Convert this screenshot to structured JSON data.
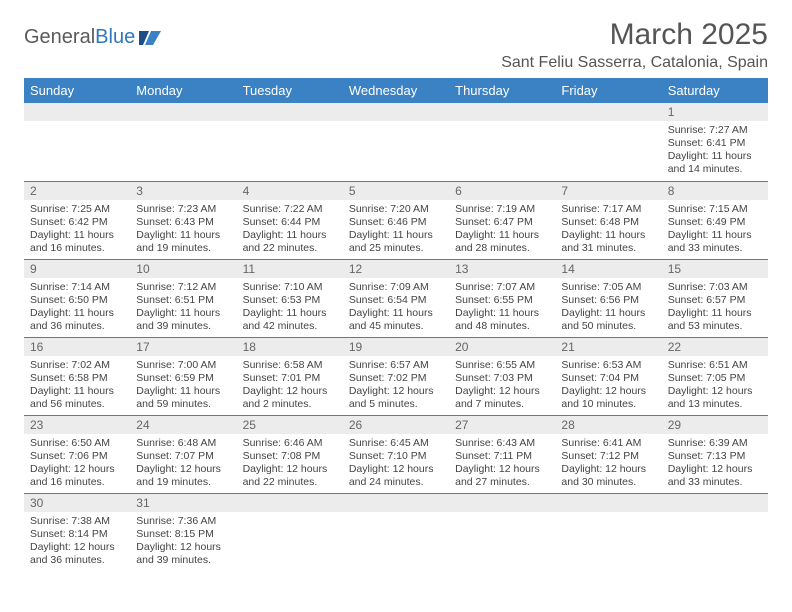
{
  "logo": {
    "text_a": "General",
    "text_b": "Blue"
  },
  "title": "March 2025",
  "location": "Sant Feliu Sasserra, Catalonia, Spain",
  "colors": {
    "header_bg": "#3a82c4",
    "header_fg": "#ffffff",
    "daynum_bg": "#ececec",
    "border": "#3a82c4",
    "logo_gray": "#5a5a5a",
    "logo_blue": "#2f78bd"
  },
  "weekdays": [
    "Sunday",
    "Monday",
    "Tuesday",
    "Wednesday",
    "Thursday",
    "Friday",
    "Saturday"
  ],
  "weeks": [
    [
      {
        "n": "",
        "lines": []
      },
      {
        "n": "",
        "lines": []
      },
      {
        "n": "",
        "lines": []
      },
      {
        "n": "",
        "lines": []
      },
      {
        "n": "",
        "lines": []
      },
      {
        "n": "",
        "lines": []
      },
      {
        "n": "1",
        "lines": [
          "Sunrise: 7:27 AM",
          "Sunset: 6:41 PM",
          "Daylight: 11 hours",
          "and 14 minutes."
        ]
      }
    ],
    [
      {
        "n": "2",
        "lines": [
          "Sunrise: 7:25 AM",
          "Sunset: 6:42 PM",
          "Daylight: 11 hours",
          "and 16 minutes."
        ]
      },
      {
        "n": "3",
        "lines": [
          "Sunrise: 7:23 AM",
          "Sunset: 6:43 PM",
          "Daylight: 11 hours",
          "and 19 minutes."
        ]
      },
      {
        "n": "4",
        "lines": [
          "Sunrise: 7:22 AM",
          "Sunset: 6:44 PM",
          "Daylight: 11 hours",
          "and 22 minutes."
        ]
      },
      {
        "n": "5",
        "lines": [
          "Sunrise: 7:20 AM",
          "Sunset: 6:46 PM",
          "Daylight: 11 hours",
          "and 25 minutes."
        ]
      },
      {
        "n": "6",
        "lines": [
          "Sunrise: 7:19 AM",
          "Sunset: 6:47 PM",
          "Daylight: 11 hours",
          "and 28 minutes."
        ]
      },
      {
        "n": "7",
        "lines": [
          "Sunrise: 7:17 AM",
          "Sunset: 6:48 PM",
          "Daylight: 11 hours",
          "and 31 minutes."
        ]
      },
      {
        "n": "8",
        "lines": [
          "Sunrise: 7:15 AM",
          "Sunset: 6:49 PM",
          "Daylight: 11 hours",
          "and 33 minutes."
        ]
      }
    ],
    [
      {
        "n": "9",
        "lines": [
          "Sunrise: 7:14 AM",
          "Sunset: 6:50 PM",
          "Daylight: 11 hours",
          "and 36 minutes."
        ]
      },
      {
        "n": "10",
        "lines": [
          "Sunrise: 7:12 AM",
          "Sunset: 6:51 PM",
          "Daylight: 11 hours",
          "and 39 minutes."
        ]
      },
      {
        "n": "11",
        "lines": [
          "Sunrise: 7:10 AM",
          "Sunset: 6:53 PM",
          "Daylight: 11 hours",
          "and 42 minutes."
        ]
      },
      {
        "n": "12",
        "lines": [
          "Sunrise: 7:09 AM",
          "Sunset: 6:54 PM",
          "Daylight: 11 hours",
          "and 45 minutes."
        ]
      },
      {
        "n": "13",
        "lines": [
          "Sunrise: 7:07 AM",
          "Sunset: 6:55 PM",
          "Daylight: 11 hours",
          "and 48 minutes."
        ]
      },
      {
        "n": "14",
        "lines": [
          "Sunrise: 7:05 AM",
          "Sunset: 6:56 PM",
          "Daylight: 11 hours",
          "and 50 minutes."
        ]
      },
      {
        "n": "15",
        "lines": [
          "Sunrise: 7:03 AM",
          "Sunset: 6:57 PM",
          "Daylight: 11 hours",
          "and 53 minutes."
        ]
      }
    ],
    [
      {
        "n": "16",
        "lines": [
          "Sunrise: 7:02 AM",
          "Sunset: 6:58 PM",
          "Daylight: 11 hours",
          "and 56 minutes."
        ]
      },
      {
        "n": "17",
        "lines": [
          "Sunrise: 7:00 AM",
          "Sunset: 6:59 PM",
          "Daylight: 11 hours",
          "and 59 minutes."
        ]
      },
      {
        "n": "18",
        "lines": [
          "Sunrise: 6:58 AM",
          "Sunset: 7:01 PM",
          "Daylight: 12 hours",
          "and 2 minutes."
        ]
      },
      {
        "n": "19",
        "lines": [
          "Sunrise: 6:57 AM",
          "Sunset: 7:02 PM",
          "Daylight: 12 hours",
          "and 5 minutes."
        ]
      },
      {
        "n": "20",
        "lines": [
          "Sunrise: 6:55 AM",
          "Sunset: 7:03 PM",
          "Daylight: 12 hours",
          "and 7 minutes."
        ]
      },
      {
        "n": "21",
        "lines": [
          "Sunrise: 6:53 AM",
          "Sunset: 7:04 PM",
          "Daylight: 12 hours",
          "and 10 minutes."
        ]
      },
      {
        "n": "22",
        "lines": [
          "Sunrise: 6:51 AM",
          "Sunset: 7:05 PM",
          "Daylight: 12 hours",
          "and 13 minutes."
        ]
      }
    ],
    [
      {
        "n": "23",
        "lines": [
          "Sunrise: 6:50 AM",
          "Sunset: 7:06 PM",
          "Daylight: 12 hours",
          "and 16 minutes."
        ]
      },
      {
        "n": "24",
        "lines": [
          "Sunrise: 6:48 AM",
          "Sunset: 7:07 PM",
          "Daylight: 12 hours",
          "and 19 minutes."
        ]
      },
      {
        "n": "25",
        "lines": [
          "Sunrise: 6:46 AM",
          "Sunset: 7:08 PM",
          "Daylight: 12 hours",
          "and 22 minutes."
        ]
      },
      {
        "n": "26",
        "lines": [
          "Sunrise: 6:45 AM",
          "Sunset: 7:10 PM",
          "Daylight: 12 hours",
          "and 24 minutes."
        ]
      },
      {
        "n": "27",
        "lines": [
          "Sunrise: 6:43 AM",
          "Sunset: 7:11 PM",
          "Daylight: 12 hours",
          "and 27 minutes."
        ]
      },
      {
        "n": "28",
        "lines": [
          "Sunrise: 6:41 AM",
          "Sunset: 7:12 PM",
          "Daylight: 12 hours",
          "and 30 minutes."
        ]
      },
      {
        "n": "29",
        "lines": [
          "Sunrise: 6:39 AM",
          "Sunset: 7:13 PM",
          "Daylight: 12 hours",
          "and 33 minutes."
        ]
      }
    ],
    [
      {
        "n": "30",
        "lines": [
          "Sunrise: 7:38 AM",
          "Sunset: 8:14 PM",
          "Daylight: 12 hours",
          "and 36 minutes."
        ]
      },
      {
        "n": "31",
        "lines": [
          "Sunrise: 7:36 AM",
          "Sunset: 8:15 PM",
          "Daylight: 12 hours",
          "and 39 minutes."
        ]
      },
      {
        "n": "",
        "lines": []
      },
      {
        "n": "",
        "lines": []
      },
      {
        "n": "",
        "lines": []
      },
      {
        "n": "",
        "lines": []
      },
      {
        "n": "",
        "lines": []
      }
    ]
  ]
}
